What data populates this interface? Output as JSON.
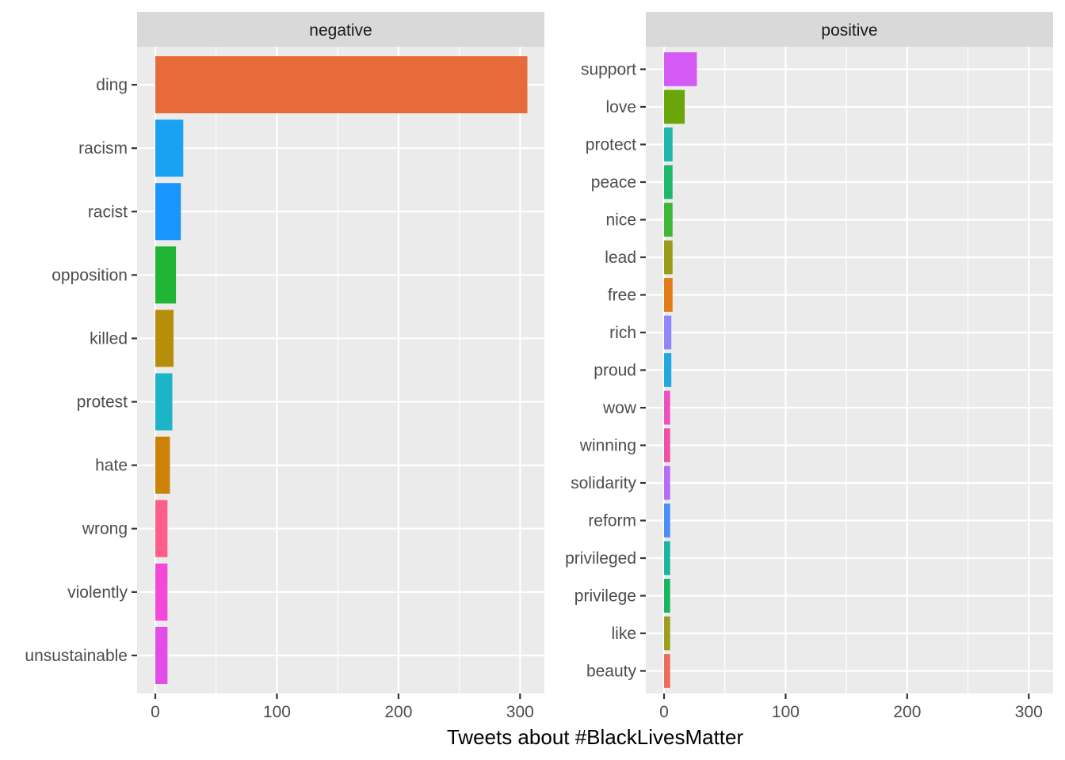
{
  "chart_data": {
    "type": "bar",
    "orientation": "horizontal",
    "layout": "facets side by side",
    "xlabel": "Tweets about #BlackLivesMatter",
    "ylabel": "",
    "xlim": [
      -15,
      320
    ],
    "x_ticks": [
      0,
      100,
      200,
      300
    ],
    "grid": true,
    "legend": "none",
    "panels": [
      {
        "title": "negative",
        "bars": [
          {
            "word": "ding",
            "value": 306,
            "color": "#E76B3A"
          },
          {
            "word": "racism",
            "value": 23,
            "color": "#1AA1F1"
          },
          {
            "word": "racist",
            "value": 21,
            "color": "#1996FF"
          },
          {
            "word": "opposition",
            "value": 17,
            "color": "#21B535"
          },
          {
            "word": "killed",
            "value": 15,
            "color": "#B78E0A"
          },
          {
            "word": "protest",
            "value": 14,
            "color": "#1DB4C8"
          },
          {
            "word": "hate",
            "value": 12,
            "color": "#CC8206"
          },
          {
            "word": "wrong",
            "value": 10,
            "color": "#FE5E8A"
          },
          {
            "word": "violently",
            "value": 10,
            "color": "#F449D8"
          },
          {
            "word": "unsustainable",
            "value": 10,
            "color": "#E14DE6"
          }
        ]
      },
      {
        "title": "positive",
        "bars": [
          {
            "word": "support",
            "value": 27,
            "color": "#D35AF4"
          },
          {
            "word": "love",
            "value": 17,
            "color": "#6AA50A"
          },
          {
            "word": "protect",
            "value": 7,
            "color": "#1FB8A8"
          },
          {
            "word": "peace",
            "value": 7,
            "color": "#1DB86B"
          },
          {
            "word": "nice",
            "value": 7,
            "color": "#3EB637"
          },
          {
            "word": "lead",
            "value": 7,
            "color": "#9C9A1A"
          },
          {
            "word": "free",
            "value": 7,
            "color": "#E37A18"
          },
          {
            "word": "rich",
            "value": 6,
            "color": "#8F86FA"
          },
          {
            "word": "proud",
            "value": 6,
            "color": "#21A8E0"
          },
          {
            "word": "wow",
            "value": 5,
            "color": "#EE4FC0"
          },
          {
            "word": "winning",
            "value": 5,
            "color": "#F04FA3"
          },
          {
            "word": "solidarity",
            "value": 5,
            "color": "#B86BF6"
          },
          {
            "word": "reform",
            "value": 5,
            "color": "#4C8CF6"
          },
          {
            "word": "privileged",
            "value": 5,
            "color": "#17B6A0"
          },
          {
            "word": "privilege",
            "value": 5,
            "color": "#19B45E"
          },
          {
            "word": "like",
            "value": 5,
            "color": "#9E9E1D"
          },
          {
            "word": "beauty",
            "value": 5,
            "color": "#EE6A5E"
          }
        ]
      }
    ]
  }
}
